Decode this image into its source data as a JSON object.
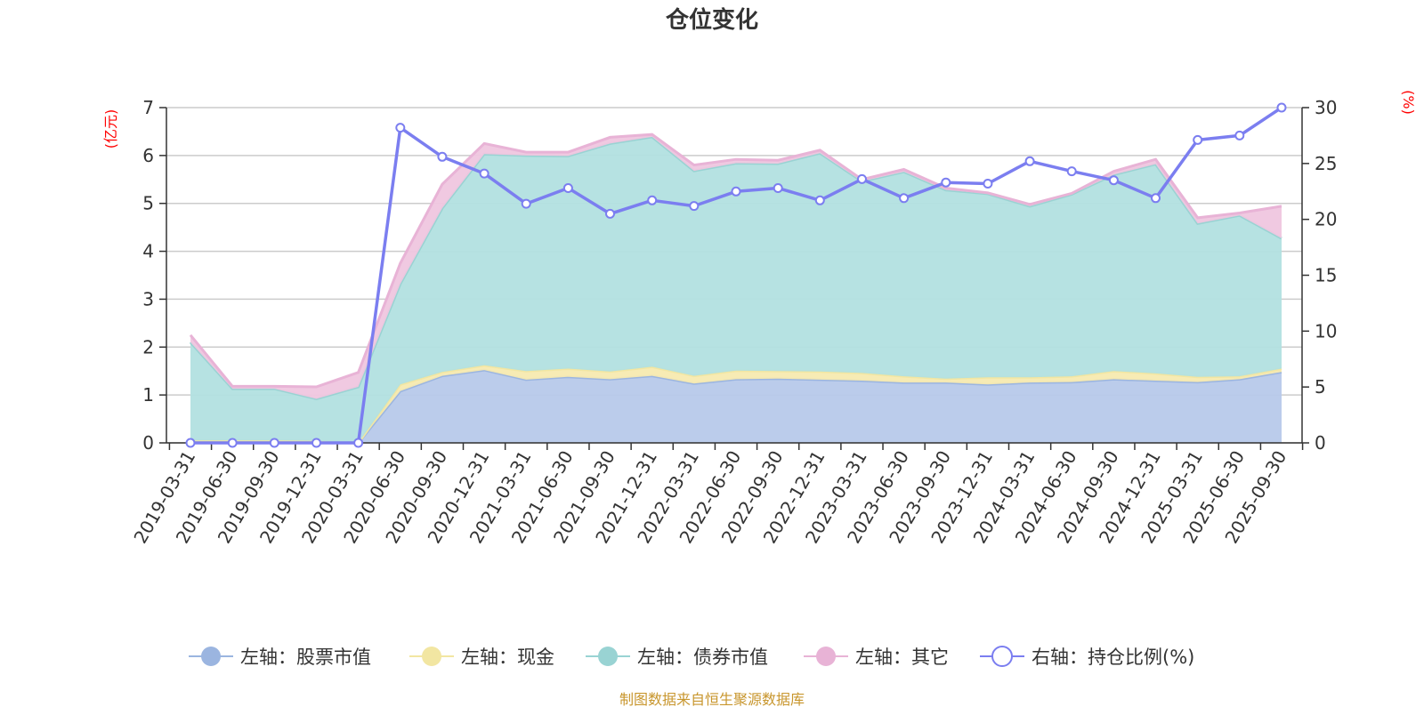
{
  "chart_data": {
    "type": "area",
    "title": "仓位变化",
    "categories": [
      "2019-03-31",
      "2019-06-30",
      "2019-09-30",
      "2019-12-31",
      "2020-03-31",
      "2020-06-30",
      "2020-09-30",
      "2020-12-31",
      "2021-03-31",
      "2021-06-30",
      "2021-09-30",
      "2021-12-31",
      "2022-03-31",
      "2022-06-30",
      "2022-09-30",
      "2022-12-31",
      "2023-03-31",
      "2023-06-30",
      "2023-09-30",
      "2023-12-31",
      "2024-03-31",
      "2024-06-30",
      "2024-09-30",
      "2024-12-31",
      "2025-03-31",
      "2025-06-30",
      "2025-09-30"
    ],
    "y_left": {
      "label": "(亿元)",
      "min": 0,
      "max": 7,
      "ticks": [
        "0",
        "1",
        "2",
        "3",
        "4",
        "5",
        "6",
        "7"
      ]
    },
    "y_right": {
      "label": "(%)",
      "min": 0,
      "max": 30,
      "ticks": [
        "0",
        "5",
        "10",
        "15",
        "20",
        "25",
        "30"
      ]
    },
    "stack_series": [
      {
        "name": "左轴：股票市值",
        "color": "#9bb5e0",
        "fill": "#b7c9ea",
        "values": [
          0.0,
          0.0,
          0.0,
          0.0,
          0.0,
          1.08,
          1.4,
          1.52,
          1.32,
          1.38,
          1.33,
          1.4,
          1.24,
          1.33,
          1.34,
          1.32,
          1.3,
          1.26,
          1.26,
          1.22,
          1.26,
          1.27,
          1.33,
          1.3,
          1.27,
          1.33,
          1.48
        ]
      },
      {
        "name": "左轴：现金",
        "color": "#f2e6a2",
        "fill": "#f7eab0",
        "values": [
          0.05,
          0.05,
          0.05,
          0.04,
          0.0,
          0.14,
          0.08,
          0.1,
          0.18,
          0.17,
          0.16,
          0.19,
          0.16,
          0.18,
          0.16,
          0.17,
          0.16,
          0.13,
          0.08,
          0.15,
          0.11,
          0.12,
          0.17,
          0.15,
          0.11,
          0.06,
          0.07
        ]
      },
      {
        "name": "左轴：债券市值",
        "color": "#99d3d3",
        "fill": "#b2e0e0",
        "values": [
          2.05,
          1.08,
          1.08,
          0.88,
          1.17,
          2.1,
          3.42,
          4.41,
          4.5,
          4.44,
          4.76,
          4.8,
          4.28,
          4.33,
          4.33,
          4.56,
          4.0,
          4.27,
          3.94,
          3.83,
          3.57,
          3.8,
          4.1,
          4.37,
          3.2,
          3.36,
          2.72
        ]
      },
      {
        "name": "左轴：其它",
        "color": "#e8b3d6",
        "fill": "#efc6df",
        "values": [
          0.15,
          0.05,
          0.05,
          0.25,
          0.3,
          0.43,
          0.5,
          0.22,
          0.07,
          0.08,
          0.13,
          0.05,
          0.12,
          0.08,
          0.07,
          0.06,
          0.04,
          0.05,
          0.04,
          0.02,
          0.04,
          0.02,
          0.07,
          0.1,
          0.12,
          0.05,
          0.67
        ]
      }
    ],
    "line_series": {
      "name": "右轴：持仓比例(%)",
      "color": "#7b7ef0",
      "values": [
        0,
        0,
        0,
        0,
        0,
        28.2,
        25.6,
        24.1,
        21.4,
        22.8,
        20.5,
        21.7,
        21.2,
        22.5,
        22.8,
        21.7,
        23.6,
        21.9,
        23.3,
        23.2,
        25.2,
        24.3,
        23.5,
        21.9,
        27.1,
        27.5,
        30.0
      ]
    },
    "grid": true,
    "legend_position": "bottom"
  },
  "source_text": "制图数据来自恒生聚源数据库",
  "colors": {
    "title": "#333333",
    "axis": "#333333",
    "grid": "#cccccc",
    "unit": "#ff0000",
    "source": "#c8962d"
  }
}
